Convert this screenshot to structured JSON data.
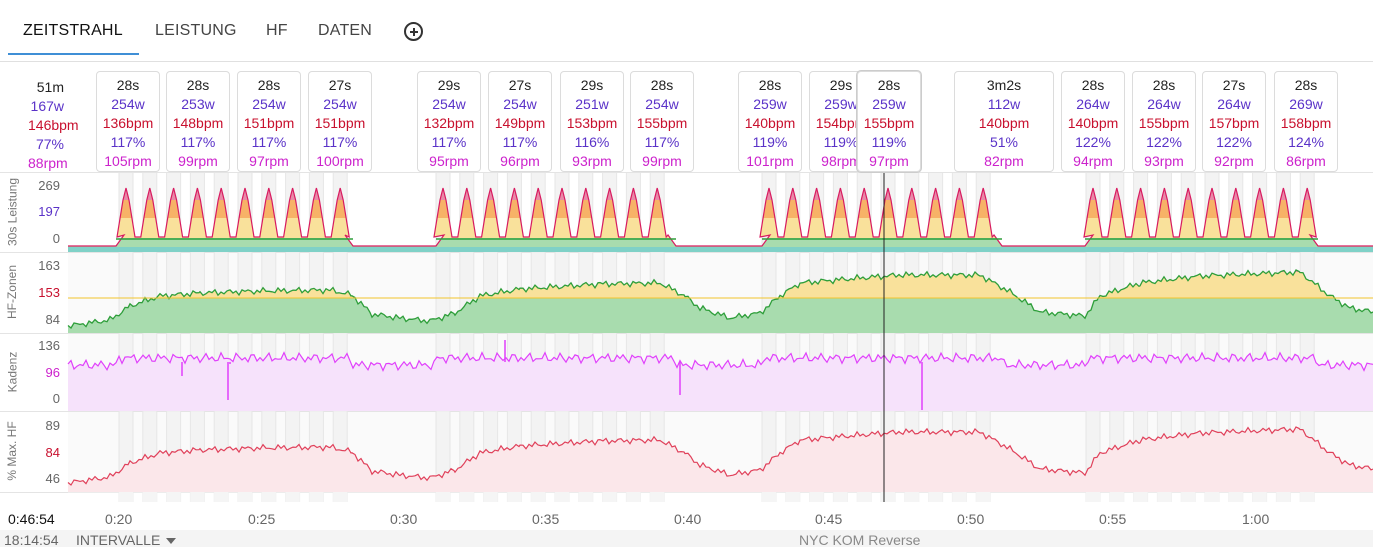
{
  "tabs": [
    {
      "label": "ZEITSTRAHL",
      "active": true
    },
    {
      "label": "LEISTUNG"
    },
    {
      "label": "HF"
    },
    {
      "label": "DATEN"
    }
  ],
  "summary": {
    "duration": "51m",
    "watts": "167w",
    "bpm": "146bpm",
    "percent": "77%",
    "rpm": "88rpm"
  },
  "intervals": [
    {
      "d": "28s",
      "w": "254w",
      "bpm": "136bpm",
      "pct": "117%",
      "rpm": "105rpm"
    },
    {
      "d": "28s",
      "w": "253w",
      "bpm": "148bpm",
      "pct": "117%",
      "rpm": "99rpm"
    },
    {
      "d": "28s",
      "w": "254w",
      "bpm": "151bpm",
      "pct": "117%",
      "rpm": "97rpm"
    },
    {
      "d": "27s",
      "w": "254w",
      "bpm": "151bpm",
      "pct": "117%",
      "rpm": "100rpm"
    },
    {
      "d": "29s",
      "w": "254w",
      "bpm": "132bpm",
      "pct": "117%",
      "rpm": "95rpm"
    },
    {
      "d": "27s",
      "w": "254w",
      "bpm": "149bpm",
      "pct": "117%",
      "rpm": "96rpm"
    },
    {
      "d": "29s",
      "w": "251w",
      "bpm": "153bpm",
      "pct": "116%",
      "rpm": "93rpm"
    },
    {
      "d": "28s",
      "w": "254w",
      "bpm": "155bpm",
      "pct": "117%",
      "rpm": "99rpm"
    },
    {
      "d": "28s",
      "w": "259w",
      "bpm": "140bpm",
      "pct": "119%",
      "rpm": "101rpm"
    },
    {
      "d": "29s",
      "w": "259w",
      "bpm": "154bpm",
      "pct": "119%",
      "rpm": "98rpm"
    },
    {
      "d": "28s",
      "w": "259w",
      "bpm": "155bpm",
      "pct": "119%",
      "rpm": "97rpm"
    },
    {
      "d": "3m2s",
      "w": "112w",
      "bpm": "140bpm",
      "pct": "51%",
      "rpm": "82rpm"
    },
    {
      "d": "28s",
      "w": "264w",
      "bpm": "140bpm",
      "pct": "122%",
      "rpm": "94rpm"
    },
    {
      "d": "28s",
      "w": "264w",
      "bpm": "155bpm",
      "pct": "122%",
      "rpm": "93rpm"
    },
    {
      "d": "27s",
      "w": "264w",
      "bpm": "157bpm",
      "pct": "122%",
      "rpm": "92rpm"
    },
    {
      "d": "28s",
      "w": "269w",
      "bpm": "158bpm",
      "pct": "124%",
      "rpm": "86rpm"
    }
  ],
  "panels": [
    {
      "label": "30s Leistung",
      "ticks": [
        "269",
        "197",
        "0"
      ]
    },
    {
      "label": "HF-Zonen",
      "ticks": [
        "163",
        "153",
        "84"
      ]
    },
    {
      "label": "Kadenz",
      "ticks": [
        "136",
        "96",
        "0"
      ]
    },
    {
      "label": "% Max. HF",
      "ticks": [
        "89",
        "84",
        "46"
      ]
    }
  ],
  "x_ticks": [
    "0:20",
    "0:25",
    "0:30",
    "0:35",
    "0:40",
    "0:45",
    "0:50",
    "0:55",
    "1:00"
  ],
  "cursor_time": "0:46:54",
  "clock_time": "18:14:54",
  "intervals_button": "INTERVALLE",
  "route_name": "NYC KOM Reverse",
  "colors": {
    "power": "#d81b60",
    "hr": "#c8102e",
    "cadence": "#e040fb",
    "pct_hr": "#e0405a",
    "zone_green": "#2e9e3a",
    "zone_yellow": "#f2c42c",
    "zone_red": "#d81b60",
    "accent": "#3f8fd6"
  },
  "chart_data": [
    {
      "type": "area",
      "title": "",
      "ylabel": "30s Leistung",
      "y_ticks": [
        0,
        197,
        269
      ],
      "x_range": [
        "0:17",
        "1:04"
      ],
      "description_values": {
        "efforts_watts": [
          254,
          253,
          254,
          254,
          254,
          254,
          251,
          254,
          259,
          259,
          259,
          264,
          264,
          264,
          269
        ],
        "rest_watts": 0
      }
    },
    {
      "type": "area",
      "title": "",
      "ylabel": "HF-Zonen",
      "y_ticks": [
        84,
        153,
        163
      ],
      "x_range": [
        "0:17",
        "1:04"
      ]
    },
    {
      "type": "line",
      "title": "",
      "ylabel": "Kadenz",
      "y_ticks": [
        0,
        96,
        136
      ],
      "x_range": [
        "0:17",
        "1:04"
      ]
    },
    {
      "type": "line",
      "title": "",
      "ylabel": "% Max. HF",
      "y_ticks": [
        46,
        84,
        89
      ],
      "x_range": [
        "0:17",
        "1:04"
      ]
    }
  ]
}
